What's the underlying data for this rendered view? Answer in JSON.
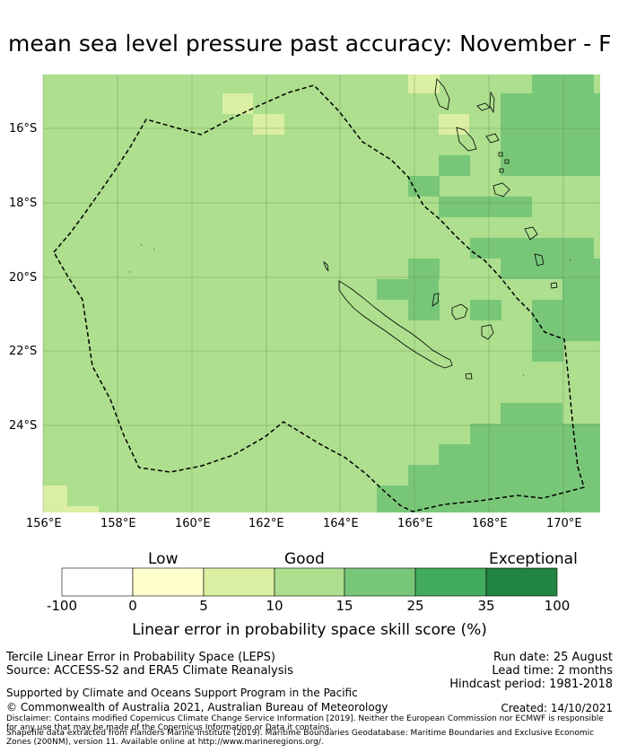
{
  "title": "mean sea level pressure past accuracy: November - F",
  "map": {
    "lon_labels": [
      "156°E",
      "158°E",
      "160°E",
      "162°E",
      "164°E",
      "166°E",
      "168°E",
      "170°E"
    ],
    "lat_labels": [
      "16°S",
      "18°S",
      "20°S",
      "22°S",
      "24°S"
    ],
    "colors": {
      "band_0_5": "#fefecc",
      "band_5_10": "#dbefa2",
      "band_10_15": "#addf8e",
      "band_15_25": "#78c779",
      "band_25_35": "#42ab5d",
      "band_35_100": "#228443",
      "gridline": "#567a45",
      "coastline": "#000000",
      "boundary": "#000000"
    }
  },
  "legend": {
    "category_low": "Low",
    "category_good": "Good",
    "category_exceptional": "Exceptional",
    "ticks": [
      "-100",
      "0",
      "5",
      "10",
      "15",
      "25",
      "35",
      "100"
    ],
    "title": "Linear error in probability space skill score (%)"
  },
  "info": {
    "product": "Tercile Linear Error in Probability Space (LEPS)",
    "source": "Source: ACCESS-S2 and ERA5 Climate Reanalysis",
    "support": "Supported by Climate and Oceans Support Program in the Pacific",
    "copyright": "© Commonwealth of Australia 2021, Australian Bureau of Meteorology",
    "run_date": "Run date: 25 August",
    "lead_time": "Lead time: 2 months",
    "hindcast": "Hindcast period: 1981-2018",
    "created": "Created: 14/10/2021",
    "disclaimer1": "Disclaimer: Contains modified Copernicus Climate Change Service Information [2019]. Neither the European Commission nor ECMWF is responsible for any use that may be made of the Copernicus Information or Data it contains.",
    "disclaimer2": "Shapefile data extracted from Flanders Marine Institute (2019). Maritime Boundaries Geodatabase: Maritime Boundaries and Exclusive Economic Zones (200NM), version 11. Available online at http://www.marineregions.org/."
  }
}
